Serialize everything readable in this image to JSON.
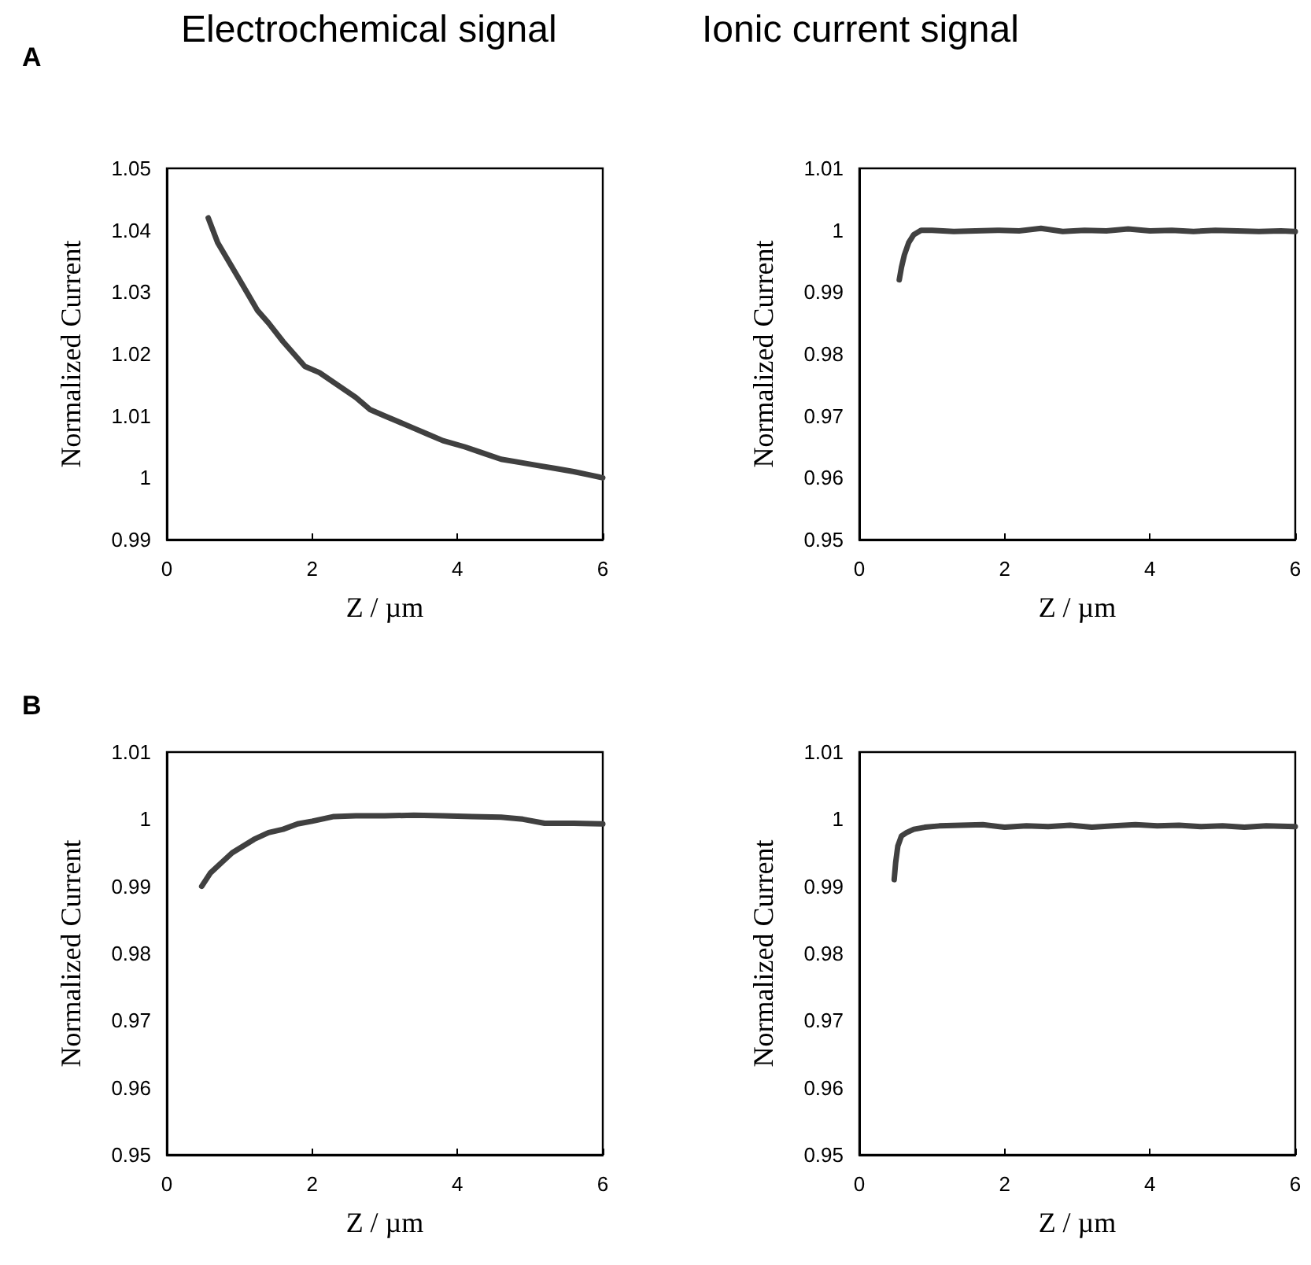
{
  "chart_data": [
    {
      "type": "line",
      "title": "Electrochemical signal",
      "annotations": [
        "A"
      ],
      "xlabel": "Z / µm",
      "ylabel": "Normalized Current",
      "xlim": [
        0,
        6
      ],
      "xticks": [
        0,
        2,
        4,
        6
      ],
      "ylim": [
        0.99,
        1.05
      ],
      "yticks": [
        0.99,
        1,
        1.01,
        1.02,
        1.03,
        1.04,
        1.05
      ],
      "marker": "none",
      "line_style": "solid",
      "series": [
        {
          "color": "#404040",
          "x": [
            0.57,
            0.7,
            0.85,
            1.0,
            1.1,
            1.25,
            1.4,
            1.6,
            1.75,
            1.9,
            2.1,
            2.35,
            2.6,
            2.8,
            3.0,
            3.2,
            3.4,
            3.6,
            3.8,
            4.1,
            4.35,
            4.6,
            4.85,
            5.1,
            5.35,
            5.6,
            5.8,
            6.0
          ],
          "values": [
            1.042,
            1.038,
            1.035,
            1.032,
            1.03,
            1.027,
            1.025,
            1.022,
            1.02,
            1.018,
            1.017,
            1.015,
            1.013,
            1.011,
            1.01,
            1.009,
            1.008,
            1.007,
            1.006,
            1.005,
            1.004,
            1.003,
            1.0025,
            1.002,
            1.0015,
            1.001,
            1.0005,
            1.0
          ]
        }
      ]
    },
    {
      "type": "line",
      "title": "Ionic current signal",
      "xlabel": "Z / µm",
      "ylabel": "Normalized Current",
      "xlim": [
        0,
        6
      ],
      "xticks": [
        0,
        2,
        4,
        6
      ],
      "ylim": [
        0.95,
        1.01
      ],
      "yticks": [
        0.95,
        0.96,
        0.97,
        0.98,
        0.99,
        1,
        1.01
      ],
      "marker": "none",
      "line_style": "solid",
      "series": [
        {
          "color": "#404040",
          "x": [
            0.55,
            0.58,
            0.62,
            0.68,
            0.75,
            0.85,
            1.0,
            1.3,
            1.6,
            1.9,
            2.2,
            2.5,
            2.8,
            3.1,
            3.4,
            3.7,
            4.0,
            4.3,
            4.6,
            4.9,
            5.2,
            5.5,
            5.8,
            6.0
          ],
          "values": [
            0.992,
            0.994,
            0.996,
            0.998,
            0.9993,
            1.0,
            1.0,
            0.9998,
            0.9999,
            1.0,
            0.9999,
            1.0003,
            0.9998,
            1.0,
            0.9999,
            1.0002,
            0.9999,
            1.0,
            0.9998,
            1.0,
            0.9999,
            0.9998,
            0.9999,
            0.9998
          ]
        }
      ]
    },
    {
      "type": "line",
      "annotations": [
        "B"
      ],
      "xlabel": "Z / µm",
      "ylabel": "Normalized Current",
      "xlim": [
        0,
        6
      ],
      "xticks": [
        0,
        2,
        4,
        6
      ],
      "ylim": [
        0.95,
        1.01
      ],
      "yticks": [
        0.95,
        0.96,
        0.97,
        0.98,
        0.99,
        1,
        1.01
      ],
      "marker": "none",
      "line_style": "solid",
      "series": [
        {
          "color": "#404040",
          "x": [
            0.48,
            0.6,
            0.75,
            0.9,
            1.05,
            1.2,
            1.4,
            1.6,
            1.8,
            2.0,
            2.3,
            2.6,
            3.0,
            3.4,
            3.8,
            4.2,
            4.6,
            4.9,
            5.2,
            5.6,
            6.0
          ],
          "values": [
            0.99,
            0.992,
            0.9935,
            0.995,
            0.996,
            0.997,
            0.998,
            0.9985,
            0.9993,
            0.9997,
            1.0004,
            1.0005,
            1.0005,
            1.0006,
            1.0005,
            1.0004,
            1.0003,
            1.0,
            0.9994,
            0.9994,
            0.9993
          ]
        }
      ]
    },
    {
      "type": "line",
      "xlabel": "Z / µm",
      "ylabel": "Normalized Current",
      "xlim": [
        0,
        6
      ],
      "xticks": [
        0,
        2,
        4,
        6
      ],
      "ylim": [
        0.95,
        1.01
      ],
      "yticks": [
        0.95,
        0.96,
        0.97,
        0.98,
        0.99,
        1,
        1.01
      ],
      "marker": "none",
      "line_style": "solid",
      "series": [
        {
          "color": "#404040",
          "x": [
            0.48,
            0.5,
            0.53,
            0.58,
            0.65,
            0.75,
            0.9,
            1.1,
            1.4,
            1.7,
            2.0,
            2.3,
            2.6,
            2.9,
            3.2,
            3.5,
            3.8,
            4.1,
            4.4,
            4.7,
            5.0,
            5.3,
            5.6,
            6.0
          ],
          "values": [
            0.991,
            0.9935,
            0.996,
            0.9975,
            0.998,
            0.9985,
            0.9988,
            0.999,
            0.9991,
            0.9992,
            0.9988,
            0.999,
            0.9989,
            0.9991,
            0.9988,
            0.999,
            0.9992,
            0.999,
            0.9991,
            0.9989,
            0.999,
            0.9988,
            0.999,
            0.9989
          ]
        }
      ]
    }
  ]
}
